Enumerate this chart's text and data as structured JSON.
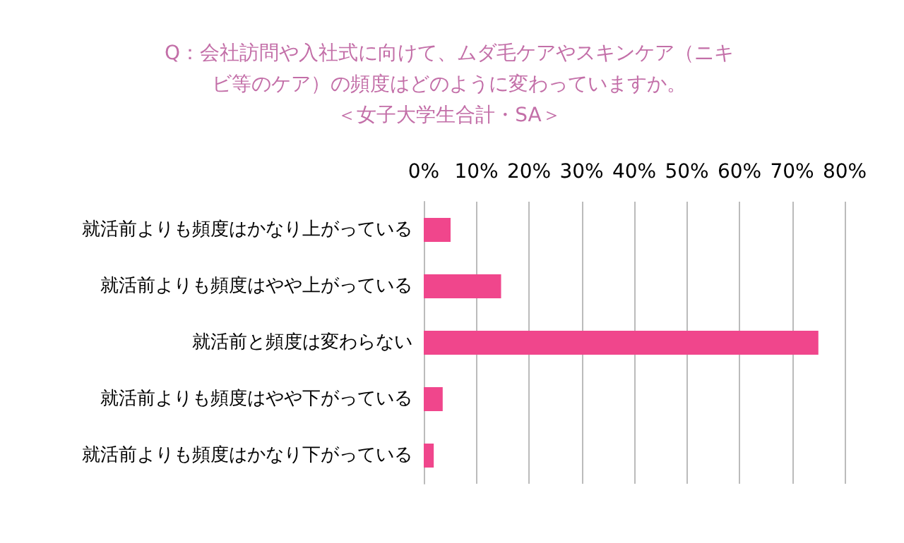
{
  "chart_data": {
    "type": "bar",
    "orientation": "horizontal",
    "title": "Q：会社訪問や入社式に向けて、ムダ毛ケアやスキンケア（ニキビ等のケア）の頻度はどのように変わっていますか。",
    "subtitle": "＜女子大学生合計・SA＞",
    "categories": [
      "就活前よりも頻度はかなり上がっている",
      "就活前よりも頻度はやや上がっている",
      "就活前と頻度は変わらない",
      "就活前よりも頻度はやや下がっている",
      "就活前よりも頻度はかなり下がっている"
    ],
    "values": [
      5.1,
      14.7,
      75.0,
      3.6,
      1.9
    ],
    "color": "#f0468c",
    "xlim": [
      0,
      80
    ],
    "xticks": [
      {
        "value": 0,
        "label": "0%"
      },
      {
        "value": 10,
        "label": "10%"
      },
      {
        "value": 20,
        "label": "20%"
      },
      {
        "value": 30,
        "label": "30%"
      },
      {
        "value": 40,
        "label": "40%"
      },
      {
        "value": 50,
        "label": "50%"
      },
      {
        "value": 60,
        "label": "60%"
      },
      {
        "value": 70,
        "label": "70%"
      },
      {
        "value": 80,
        "label": "80%"
      }
    ],
    "grid": "x"
  }
}
